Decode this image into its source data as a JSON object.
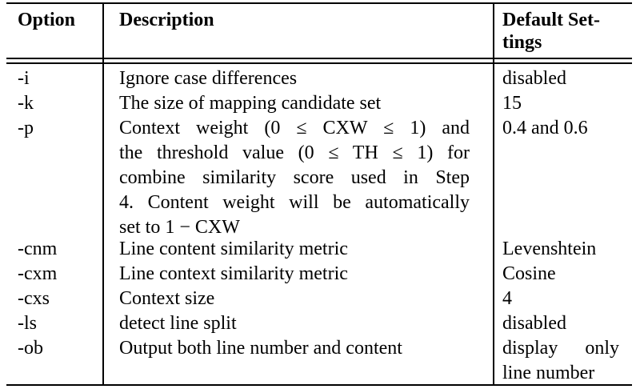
{
  "headers": {
    "option": "Option",
    "description": "Description",
    "default_line1": "Default Set-",
    "default_line2": "tings"
  },
  "rows": [
    {
      "option": "-i",
      "description": [
        "Ignore case differences"
      ],
      "default": [
        "disabled"
      ]
    },
    {
      "option": "-k",
      "description": [
        "The size of mapping candidate set"
      ],
      "default": [
        "15"
      ]
    },
    {
      "option": "-p",
      "description": [
        "Context weight (0 ≤ CXW ≤ 1) and",
        "the threshold value (0 ≤ TH ≤ 1) for",
        "combine similarity score used in Step",
        "4. Content weight will be automatically",
        "set to 1 − CXW"
      ],
      "default": [
        "0.4 and 0.6"
      ]
    },
    {
      "option": "-cnm",
      "description": [
        "Line content similarity metric"
      ],
      "default": [
        "Levenshtein"
      ]
    },
    {
      "option": "-cxm",
      "description": [
        "Line context similarity metric"
      ],
      "default": [
        "Cosine"
      ]
    },
    {
      "option": "-cxs",
      "description": [
        "Context size"
      ],
      "default": [
        "4"
      ]
    },
    {
      "option": "-ls",
      "description": [
        "detect line split"
      ],
      "default": [
        "disabled"
      ]
    },
    {
      "option": "-ob",
      "description": [
        "Output both line number and content"
      ],
      "default": [
        "display only",
        "line number"
      ]
    }
  ]
}
